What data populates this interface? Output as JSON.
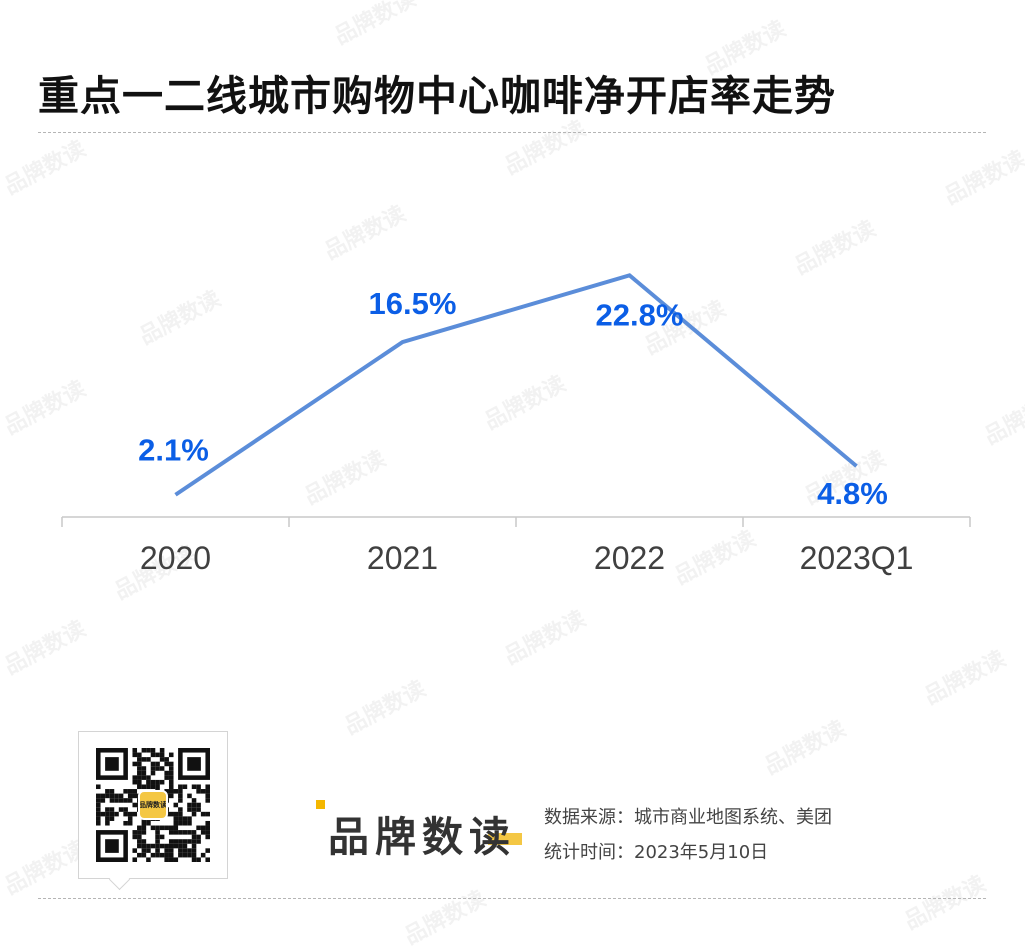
{
  "title": "重点一二线城市购物中心咖啡净开店率走势",
  "chart_data": {
    "type": "line",
    "title": "重点一二线城市购物中心咖啡净开店率走势",
    "categories": [
      "2020",
      "2021",
      "2022",
      "2023Q1"
    ],
    "values": [
      2.1,
      16.5,
      22.8,
      4.8
    ],
    "value_labels": [
      "2.1%",
      "16.5%",
      "22.8%",
      "4.8%"
    ],
    "unit": "%",
    "ylim": [
      0,
      25
    ],
    "grid": false,
    "legend": "none",
    "line_color": "#5b8dd9",
    "label_color": "#0b5ee6"
  },
  "footer": {
    "logo_text": "品牌数读",
    "qr_badge_text": "品牌数读",
    "source_label": "数据来源：城市商业地图系统、美团",
    "date_label": "统计时间：2023年5月10日"
  },
  "watermark_text": "品牌数读"
}
